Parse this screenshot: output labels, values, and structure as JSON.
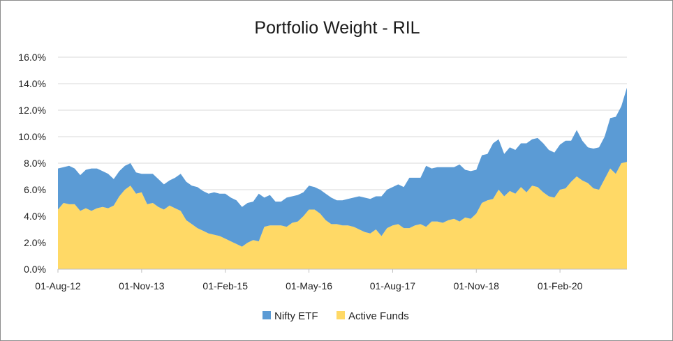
{
  "chart_data": {
    "type": "area",
    "stacked": true,
    "title": "Portfolio Weight - RIL",
    "xlabel": "",
    "ylabel": "",
    "ylim": [
      0,
      16
    ],
    "yticks": [
      "0.0%",
      "2.0%",
      "4.0%",
      "6.0%",
      "8.0%",
      "10.0%",
      "12.0%",
      "14.0%",
      "16.0%"
    ],
    "xticks": [
      "01-Aug-12",
      "01-Nov-13",
      "01-Feb-15",
      "01-May-16",
      "01-Aug-17",
      "01-Nov-18",
      "01-Feb-20"
    ],
    "grid": "horizontal",
    "legend_position": "bottom",
    "x_start": "Aug-12",
    "x_end": "Oct-20",
    "series": [
      {
        "name": "Active Funds",
        "color": "#FFD966",
        "values": [
          4.5,
          5.0,
          4.9,
          4.9,
          4.4,
          4.6,
          4.4,
          4.6,
          4.7,
          4.6,
          4.8,
          5.5,
          6.0,
          6.3,
          5.7,
          5.8,
          4.9,
          5.0,
          4.7,
          4.5,
          4.8,
          4.6,
          4.4,
          3.7,
          3.4,
          3.1,
          2.9,
          2.7,
          2.6,
          2.5,
          2.3,
          2.1,
          1.9,
          1.7,
          2.0,
          2.2,
          2.1,
          3.2,
          3.3,
          3.3,
          3.3,
          3.2,
          3.5,
          3.6,
          4.0,
          4.5,
          4.5,
          4.2,
          3.7,
          3.4,
          3.4,
          3.3,
          3.3,
          3.2,
          3.0,
          2.8,
          2.7,
          3.0,
          2.5,
          3.1,
          3.3,
          3.4,
          3.1,
          3.1,
          3.3,
          3.4,
          3.2,
          3.6,
          3.6,
          3.5,
          3.7,
          3.8,
          3.6,
          3.9,
          3.8,
          4.2,
          5.0,
          5.2,
          5.3,
          6.0,
          5.5,
          5.9,
          5.7,
          6.2,
          5.8,
          6.3,
          6.2,
          5.8,
          5.5,
          5.4,
          6.0,
          6.1,
          6.6,
          7.0,
          6.7,
          6.5,
          6.1,
          6.0,
          6.8,
          7.6,
          7.2,
          8.0,
          8.1
        ]
      },
      {
        "name": "Nifty ETF",
        "color": "#5B9BD5",
        "values": [
          3.1,
          2.7,
          2.9,
          2.7,
          2.7,
          2.9,
          3.2,
          3.0,
          2.7,
          2.6,
          2.0,
          1.9,
          1.8,
          1.7,
          1.6,
          1.4,
          2.3,
          2.2,
          2.1,
          1.9,
          1.9,
          2.3,
          2.8,
          2.9,
          2.9,
          3.1,
          3.0,
          3.0,
          3.2,
          3.2,
          3.4,
          3.3,
          3.3,
          3.0,
          3.0,
          2.9,
          3.6,
          2.2,
          2.3,
          1.8,
          1.8,
          2.2,
          2.0,
          2.0,
          1.8,
          1.8,
          1.7,
          1.8,
          2.0,
          2.0,
          1.8,
          1.9,
          2.0,
          2.2,
          2.5,
          2.6,
          2.6,
          2.5,
          3.0,
          2.9,
          2.9,
          3.0,
          3.1,
          3.8,
          3.6,
          3.5,
          4.6,
          4.0,
          4.1,
          4.2,
          4.0,
          3.9,
          4.3,
          3.6,
          3.6,
          3.3,
          3.6,
          3.5,
          4.2,
          3.8,
          3.2,
          3.3,
          3.3,
          3.3,
          3.7,
          3.5,
          3.7,
          3.7,
          3.5,
          3.4,
          3.4,
          3.6,
          3.1,
          3.5,
          3.0,
          2.7,
          3.0,
          3.2,
          3.2,
          3.8,
          4.3,
          4.3,
          5.6
        ]
      }
    ]
  }
}
